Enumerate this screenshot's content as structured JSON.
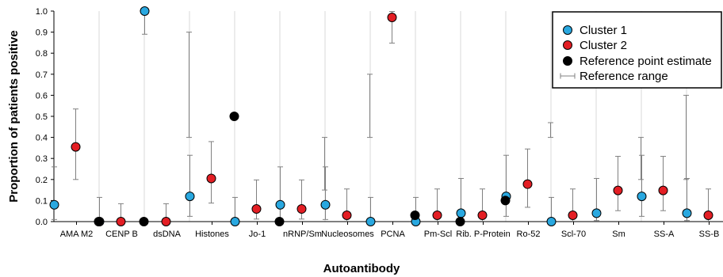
{
  "chart_data": {
    "type": "scatter",
    "title": "",
    "xlabel": "Autoantibody",
    "ylabel": "Proportion of patients positive",
    "ylim": [
      0,
      1.0
    ],
    "yticks": [
      "0.0",
      "0.1",
      "0.2",
      "0.3",
      "0.4",
      "0.5",
      "0.6",
      "0.7",
      "0.8",
      "0.9",
      "1.0"
    ],
    "grid": "vertical separators between categories",
    "legend_position": "top-right",
    "categories": [
      "AMA M2",
      "CENP B",
      "dsDNA",
      "Histones",
      "Jo-1",
      "nRNP/Sm",
      "Nucleosomes",
      "PCNA",
      "Pm-Scl",
      "Rib. P-Protein",
      "Ro-52",
      "Scl-70",
      "Sm",
      "SS-A",
      "SS-B"
    ],
    "series": [
      {
        "name": "Cluster 1",
        "color": "#29a8e0",
        "values": [
          0.08,
          0.0,
          1.0,
          0.12,
          0.0,
          0.08,
          0.08,
          0.0,
          0.0,
          0.04,
          0.12,
          0.0,
          0.04,
          0.12,
          0.04
        ],
        "ci_low": [
          0.01,
          0.0,
          0.89,
          0.025,
          0.0,
          0.01,
          0.01,
          0.0,
          0.0,
          0.005,
          0.025,
          0.0,
          0.005,
          0.025,
          0.005
        ],
        "ci_high": [
          0.26,
          0.115,
          1.0,
          0.315,
          0.115,
          0.26,
          0.26,
          0.115,
          0.115,
          0.205,
          0.315,
          0.115,
          0.205,
          0.315,
          0.205
        ]
      },
      {
        "name": "Cluster 2",
        "color": "#e31e24",
        "values": [
          0.355,
          0.0,
          0.0,
          0.205,
          0.06,
          0.06,
          0.03,
          0.97,
          0.03,
          0.03,
          0.178,
          0.03,
          0.148,
          0.148,
          0.03
        ],
        "ci_low": [
          0.2,
          0.0,
          0.0,
          0.088,
          0.012,
          0.012,
          0.002,
          0.848,
          0.002,
          0.002,
          0.068,
          0.002,
          0.052,
          0.052,
          0.002
        ],
        "ci_high": [
          0.535,
          0.085,
          0.085,
          0.38,
          0.198,
          0.198,
          0.155,
          0.998,
          0.155,
          0.155,
          0.345,
          0.155,
          0.31,
          0.31,
          0.155
        ]
      },
      {
        "name": "Reference point estimate",
        "color": "#000000",
        "values": [
          0.0,
          0.0,
          null,
          0.5,
          0.0,
          null,
          null,
          0.03,
          0.0,
          0.1,
          null,
          null,
          null,
          null,
          null
        ]
      },
      {
        "name": "Reference range",
        "color": "#808080",
        "ranges": [
          null,
          null,
          [
            0.4,
            0.9
          ],
          null,
          null,
          [
            0.15,
            0.4
          ],
          [
            0.4,
            0.7
          ],
          null,
          null,
          null,
          [
            0.4,
            0.47
          ],
          null,
          [
            0.2,
            0.4
          ],
          [
            0.2,
            0.6
          ],
          [
            0.1,
            0.2
          ]
        ]
      }
    ]
  }
}
